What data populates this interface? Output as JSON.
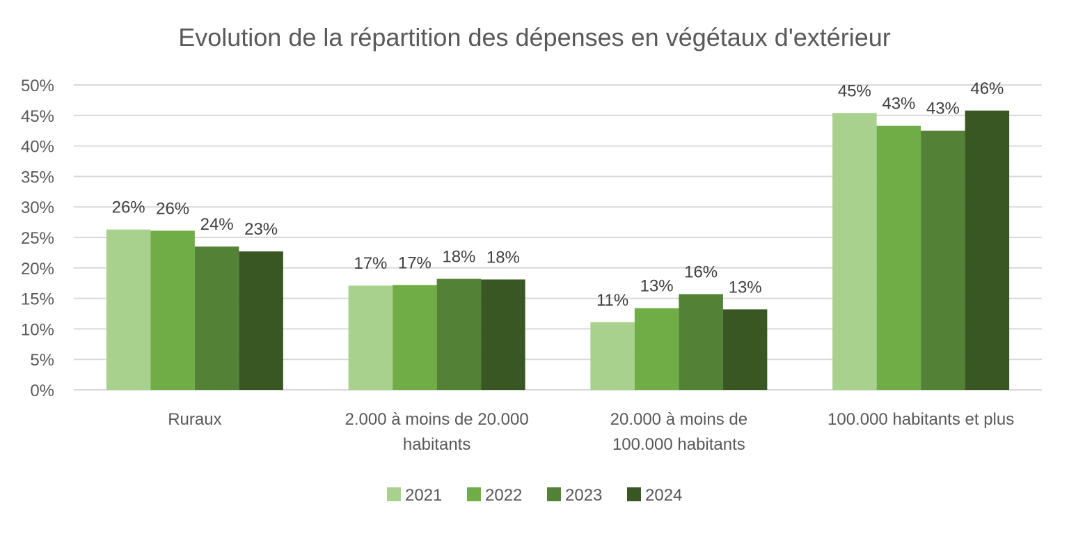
{
  "chart_data": {
    "type": "bar",
    "title": "Evolution de la répartition des dépenses en végétaux d'extérieur",
    "xlabel": "",
    "ylabel": "",
    "ylim": [
      0,
      50
    ],
    "yticks": [
      "0%",
      "5%",
      "10%",
      "15%",
      "20%",
      "25%",
      "30%",
      "35%",
      "40%",
      "45%",
      "50%"
    ],
    "grid": true,
    "legend_position": "bottom",
    "categories": [
      [
        "Ruraux"
      ],
      [
        "2.000 à moins de 20.000",
        "habitants"
      ],
      [
        "20.000 à moins de",
        "100.000 habitants"
      ],
      [
        "100.000 habitants et plus"
      ]
    ],
    "series": [
      {
        "name": "2021",
        "color": "#a9d18e",
        "values": [
          26.3,
          17.1,
          11.1,
          45.4
        ],
        "labels": [
          "26%",
          "17%",
          "11%",
          "45%"
        ]
      },
      {
        "name": "2022",
        "color": "#70ad47",
        "values": [
          26.1,
          17.2,
          13.4,
          43.3
        ],
        "labels": [
          "26%",
          "17%",
          "13%",
          "43%"
        ]
      },
      {
        "name": "2023",
        "color": "#538135",
        "values": [
          23.5,
          18.2,
          15.7,
          42.5
        ],
        "labels": [
          "24%",
          "18%",
          "16%",
          "43%"
        ]
      },
      {
        "name": "2024",
        "color": "#385723",
        "values": [
          22.7,
          18.1,
          13.2,
          45.8
        ],
        "labels": [
          "23%",
          "18%",
          "13%",
          "46%"
        ]
      }
    ]
  }
}
